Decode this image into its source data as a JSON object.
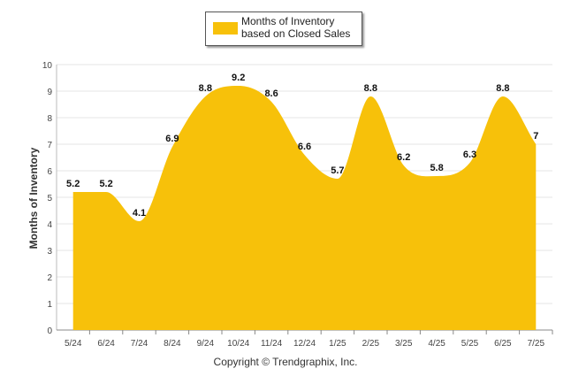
{
  "chart_data": {
    "type": "area",
    "categories": [
      "5/24",
      "6/24",
      "7/24",
      "8/24",
      "9/24",
      "10/24",
      "11/24",
      "12/24",
      "1/25",
      "2/25",
      "3/25",
      "4/25",
      "5/25",
      "6/25",
      "7/25"
    ],
    "series": [
      {
        "name": "Months of Inventory based on Closed Sales",
        "values": [
          5.2,
          5.2,
          4.1,
          6.9,
          8.8,
          9.2,
          8.6,
          6.6,
          5.7,
          8.8,
          6.2,
          5.8,
          6.3,
          8.8,
          7
        ],
        "color": "#F7C10A"
      }
    ],
    "data_labels": [
      "5.2",
      "5.2",
      "4.1",
      "6.9",
      "8.8",
      "9.2",
      "8.6",
      "6.6",
      "5.7",
      "8.8",
      "6.2",
      "5.8",
      "6.3",
      "8.8",
      "7"
    ],
    "ylabel": "Months of Inventory",
    "xlabel": "",
    "ylim": [
      0,
      10
    ],
    "yticks": [
      "0",
      "1",
      "2",
      "3",
      "4",
      "5",
      "6",
      "7",
      "8",
      "9",
      "10"
    ],
    "grid": true,
    "legend_position": "top-center"
  },
  "legend": {
    "label": "Months of Inventory based on Closed Sales",
    "color": "#F7C10A"
  },
  "footer": {
    "copyright": "Copyright © Trendgraphix, Inc."
  }
}
